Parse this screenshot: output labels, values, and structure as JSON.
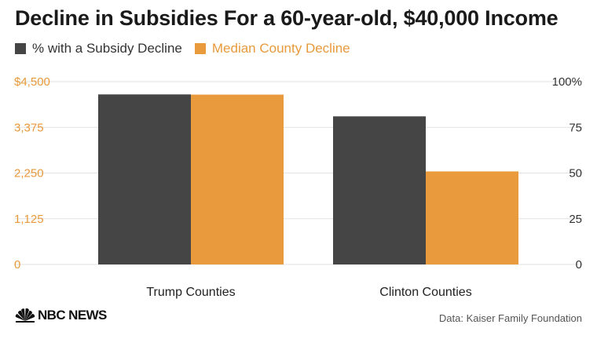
{
  "title": "Decline in Subsidies For a 60-year-old, $40,000 Income",
  "logo_text": "NBC NEWS",
  "source": "Data: Kaiser Family Foundation",
  "colors": {
    "dark_series": "#454545",
    "orange_series": "#e89a3c",
    "left_axis_text": "#e89a3c",
    "right_axis_text": "#333333",
    "gridline": "#e2e2e2"
  },
  "chart_data": {
    "type": "bar",
    "title": "Decline in Subsidies For a 60-year-old, $40,000 Income",
    "categories": [
      "Trump Counties",
      "Clinton Counties"
    ],
    "series": [
      {
        "name": "% with a Subsidy Decline",
        "axis": "right",
        "color": "#454545",
        "values": [
          93,
          81
        ]
      },
      {
        "name": "Median County Decline",
        "axis": "left",
        "color": "#e89a3c",
        "values": [
          4180,
          2290
        ]
      }
    ],
    "left_axis": {
      "ylim": [
        0,
        4500
      ],
      "ticks": [
        "0",
        "1,125",
        "2,250",
        "3,375",
        "$4,500"
      ]
    },
    "right_axis": {
      "ylim": [
        0,
        100
      ],
      "ticks": [
        "0",
        "25",
        "50",
        "75",
        "100%"
      ]
    },
    "grid": true,
    "legend_position": "top-left"
  }
}
